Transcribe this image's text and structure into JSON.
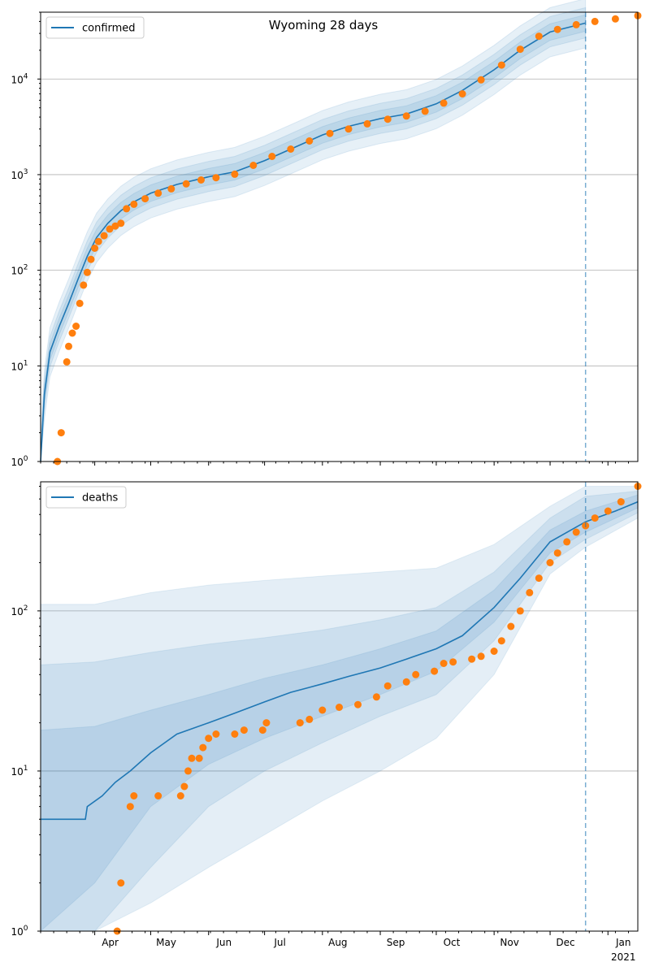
{
  "title": "Wyoming 28 days",
  "colors": {
    "model_line": "#1f77b4",
    "observed_points": "#ff7f0e",
    "band": "#1f77b4",
    "forecast_line": "#1f77b4",
    "grid": "#b0b0b0"
  },
  "month_labels": [
    "Apr",
    "May",
    "Jun",
    "Jul",
    "Aug",
    "Sep",
    "Oct",
    "Nov",
    "Dec",
    "Jan"
  ],
  "year_label": "2021",
  "chart_data": [
    {
      "type": "line",
      "name": "confirmed-panel",
      "yscale": "log",
      "ylim": [
        1,
        50000
      ],
      "yticks": [
        1,
        10,
        100,
        1000,
        10000
      ],
      "ytick_labels": [
        "10^0",
        "10^1",
        "10^2",
        "10^3",
        "10^4"
      ],
      "xlim": [
        "2020-03-03",
        "2021-01-17"
      ],
      "grid": "y-major",
      "legend": {
        "label": "confirmed",
        "position": "top-left"
      },
      "forecast_start": "2020-12-20",
      "model_line": [
        [
          "2020-03-03",
          1
        ],
        [
          "2020-03-05",
          5
        ],
        [
          "2020-03-08",
          14
        ],
        [
          "2020-03-13",
          26
        ],
        [
          "2020-03-18",
          45
        ],
        [
          "2020-03-23",
          80
        ],
        [
          "2020-03-28",
          140
        ],
        [
          "2020-04-02",
          220
        ],
        [
          "2020-04-08",
          310
        ],
        [
          "2020-04-15",
          420
        ],
        [
          "2020-04-22",
          520
        ],
        [
          "2020-05-01",
          640
        ],
        [
          "2020-05-15",
          790
        ],
        [
          "2020-06-01",
          950
        ],
        [
          "2020-06-15",
          1070
        ],
        [
          "2020-07-01",
          1400
        ],
        [
          "2020-07-15",
          1850
        ],
        [
          "2020-08-01",
          2600
        ],
        [
          "2020-08-15",
          3200
        ],
        [
          "2020-09-01",
          3850
        ],
        [
          "2020-09-15",
          4300
        ],
        [
          "2020-10-01",
          5500
        ],
        [
          "2020-10-15",
          7600
        ],
        [
          "2020-11-01",
          12500
        ],
        [
          "2020-11-15",
          20000
        ],
        [
          "2020-12-01",
          31000
        ],
        [
          "2020-12-20",
          38500
        ]
      ],
      "bands": [
        {
          "lower": 0.55,
          "upper": 1.8
        },
        {
          "lower": 0.7,
          "upper": 1.45
        },
        {
          "lower": 0.82,
          "upper": 1.22
        }
      ],
      "observed": [
        [
          "2020-03-12",
          1
        ],
        [
          "2020-03-14",
          2
        ],
        [
          "2020-03-17",
          11
        ],
        [
          "2020-03-18",
          16
        ],
        [
          "2020-03-20",
          22
        ],
        [
          "2020-03-22",
          26
        ],
        [
          "2020-03-24",
          45
        ],
        [
          "2020-03-26",
          70
        ],
        [
          "2020-03-28",
          95
        ],
        [
          "2020-03-30",
          130
        ],
        [
          "2020-04-01",
          170
        ],
        [
          "2020-04-03",
          200
        ],
        [
          "2020-04-06",
          230
        ],
        [
          "2020-04-09",
          270
        ],
        [
          "2020-04-12",
          290
        ],
        [
          "2020-04-15",
          310
        ],
        [
          "2020-04-18",
          440
        ],
        [
          "2020-04-22",
          490
        ],
        [
          "2020-04-28",
          560
        ],
        [
          "2020-05-05",
          640
        ],
        [
          "2020-05-12",
          710
        ],
        [
          "2020-05-20",
          800
        ],
        [
          "2020-05-28",
          880
        ],
        [
          "2020-06-05",
          930
        ],
        [
          "2020-06-15",
          1010
        ],
        [
          "2020-06-25",
          1250
        ],
        [
          "2020-07-05",
          1550
        ],
        [
          "2020-07-15",
          1850
        ],
        [
          "2020-07-25",
          2250
        ],
        [
          "2020-08-05",
          2700
        ],
        [
          "2020-08-15",
          3000
        ],
        [
          "2020-08-25",
          3400
        ],
        [
          "2020-09-05",
          3800
        ],
        [
          "2020-09-15",
          4100
        ],
        [
          "2020-09-25",
          4600
        ],
        [
          "2020-10-05",
          5600
        ],
        [
          "2020-10-15",
          7000
        ],
        [
          "2020-10-25",
          9800
        ],
        [
          "2020-11-05",
          14000
        ],
        [
          "2020-11-15",
          20500
        ],
        [
          "2020-11-25",
          28000
        ],
        [
          "2020-12-05",
          33000
        ],
        [
          "2020-12-15",
          37000
        ],
        [
          "2020-12-25",
          40000
        ],
        [
          "2021-01-05",
          42500
        ],
        [
          "2021-01-17",
          46000
        ]
      ]
    },
    {
      "type": "line",
      "name": "deaths-panel",
      "yscale": "log",
      "ylim": [
        1,
        640
      ],
      "yticks": [
        1,
        10,
        100
      ],
      "ytick_labels": [
        "10^0",
        "10^1",
        "10^2"
      ],
      "xlim": [
        "2020-03-03",
        "2021-01-17"
      ],
      "grid": "y-major",
      "legend": {
        "label": "deaths",
        "position": "top-left"
      },
      "forecast_start": "2020-12-20",
      "model_line": [
        [
          "2020-03-03",
          5
        ],
        [
          "2020-03-27",
          5
        ],
        [
          "2020-03-28",
          6
        ],
        [
          "2020-04-05",
          7
        ],
        [
          "2020-04-12",
          8.5
        ],
        [
          "2020-04-20",
          10
        ],
        [
          "2020-05-01",
          13
        ],
        [
          "2020-05-15",
          17
        ],
        [
          "2020-06-01",
          20
        ],
        [
          "2020-06-15",
          23
        ],
        [
          "2020-07-01",
          27
        ],
        [
          "2020-07-15",
          31
        ],
        [
          "2020-08-01",
          35
        ],
        [
          "2020-08-15",
          39
        ],
        [
          "2020-09-01",
          44
        ],
        [
          "2020-09-15",
          50
        ],
        [
          "2020-10-01",
          58
        ],
        [
          "2020-10-15",
          70
        ],
        [
          "2020-11-01",
          105
        ],
        [
          "2020-11-15",
          160
        ],
        [
          "2020-12-01",
          270
        ],
        [
          "2020-12-20",
          360
        ],
        [
          "2021-01-05",
          420
        ],
        [
          "2021-01-17",
          480
        ]
      ],
      "band_outer_series": [
        [
          "2020-03-03",
          1,
          110
        ],
        [
          "2020-04-01",
          1,
          110
        ],
        [
          "2020-05-01",
          1.5,
          130
        ],
        [
          "2020-06-01",
          2.5,
          145
        ],
        [
          "2020-07-01",
          4,
          155
        ],
        [
          "2020-08-01",
          6.5,
          165
        ],
        [
          "2020-09-01",
          10,
          175
        ],
        [
          "2020-10-01",
          16,
          185
        ],
        [
          "2020-11-01",
          40,
          260
        ],
        [
          "2020-12-01",
          170,
          450
        ],
        [
          "2020-12-20",
          250,
          600
        ],
        [
          "2021-01-17",
          380,
          600
        ]
      ],
      "band_middle_series": [
        [
          "2020-03-03",
          1,
          46
        ],
        [
          "2020-04-01",
          1,
          48
        ],
        [
          "2020-05-01",
          2.5,
          55
        ],
        [
          "2020-06-01",
          6,
          62
        ],
        [
          "2020-07-01",
          10,
          68
        ],
        [
          "2020-08-01",
          15,
          76
        ],
        [
          "2020-09-01",
          22,
          88
        ],
        [
          "2020-10-01",
          30,
          105
        ],
        [
          "2020-11-01",
          65,
          175
        ],
        [
          "2020-12-01",
          200,
          380
        ],
        [
          "2020-12-20",
          280,
          520
        ],
        [
          "2021-01-17",
          410,
          560
        ]
      ],
      "band_inner_series": [
        [
          "2020-03-03",
          1,
          18
        ],
        [
          "2020-04-01",
          2,
          19
        ],
        [
          "2020-05-01",
          6,
          24
        ],
        [
          "2020-06-01",
          11,
          30
        ],
        [
          "2020-07-01",
          16,
          38
        ],
        [
          "2020-08-01",
          22,
          46
        ],
        [
          "2020-09-01",
          30,
          58
        ],
        [
          "2020-10-01",
          42,
          75
        ],
        [
          "2020-11-01",
          85,
          135
        ],
        [
          "2020-12-01",
          230,
          320
        ],
        [
          "2020-12-20",
          310,
          420
        ],
        [
          "2021-01-17",
          440,
          530
        ]
      ],
      "observed": [
        [
          "2020-04-13",
          1
        ],
        [
          "2020-04-15",
          2
        ],
        [
          "2020-04-20",
          6
        ],
        [
          "2020-04-22",
          7
        ],
        [
          "2020-05-05",
          7
        ],
        [
          "2020-05-17",
          7
        ],
        [
          "2020-05-19",
          8
        ],
        [
          "2020-05-21",
          10
        ],
        [
          "2020-05-23",
          12
        ],
        [
          "2020-05-27",
          12
        ],
        [
          "2020-05-29",
          14
        ],
        [
          "2020-06-01",
          16
        ],
        [
          "2020-06-05",
          17
        ],
        [
          "2020-06-15",
          17
        ],
        [
          "2020-06-20",
          18
        ],
        [
          "2020-06-30",
          18
        ],
        [
          "2020-07-02",
          20
        ],
        [
          "2020-07-20",
          20
        ],
        [
          "2020-07-25",
          21
        ],
        [
          "2020-08-01",
          24
        ],
        [
          "2020-08-10",
          25
        ],
        [
          "2020-08-20",
          26
        ],
        [
          "2020-08-30",
          29
        ],
        [
          "2020-09-05",
          34
        ],
        [
          "2020-09-15",
          36
        ],
        [
          "2020-09-20",
          40
        ],
        [
          "2020-09-30",
          42
        ],
        [
          "2020-10-05",
          47
        ],
        [
          "2020-10-10",
          48
        ],
        [
          "2020-10-20",
          50
        ],
        [
          "2020-10-25",
          52
        ],
        [
          "2020-11-01",
          56
        ],
        [
          "2020-11-05",
          65
        ],
        [
          "2020-11-10",
          80
        ],
        [
          "2020-11-15",
          100
        ],
        [
          "2020-11-20",
          130
        ],
        [
          "2020-11-25",
          160
        ],
        [
          "2020-12-01",
          200
        ],
        [
          "2020-12-05",
          230
        ],
        [
          "2020-12-10",
          270
        ],
        [
          "2020-12-15",
          310
        ],
        [
          "2020-12-20",
          340
        ],
        [
          "2020-12-25",
          380
        ],
        [
          "2021-01-01",
          420
        ],
        [
          "2021-01-08",
          480
        ],
        [
          "2021-01-17",
          600
        ]
      ]
    }
  ]
}
